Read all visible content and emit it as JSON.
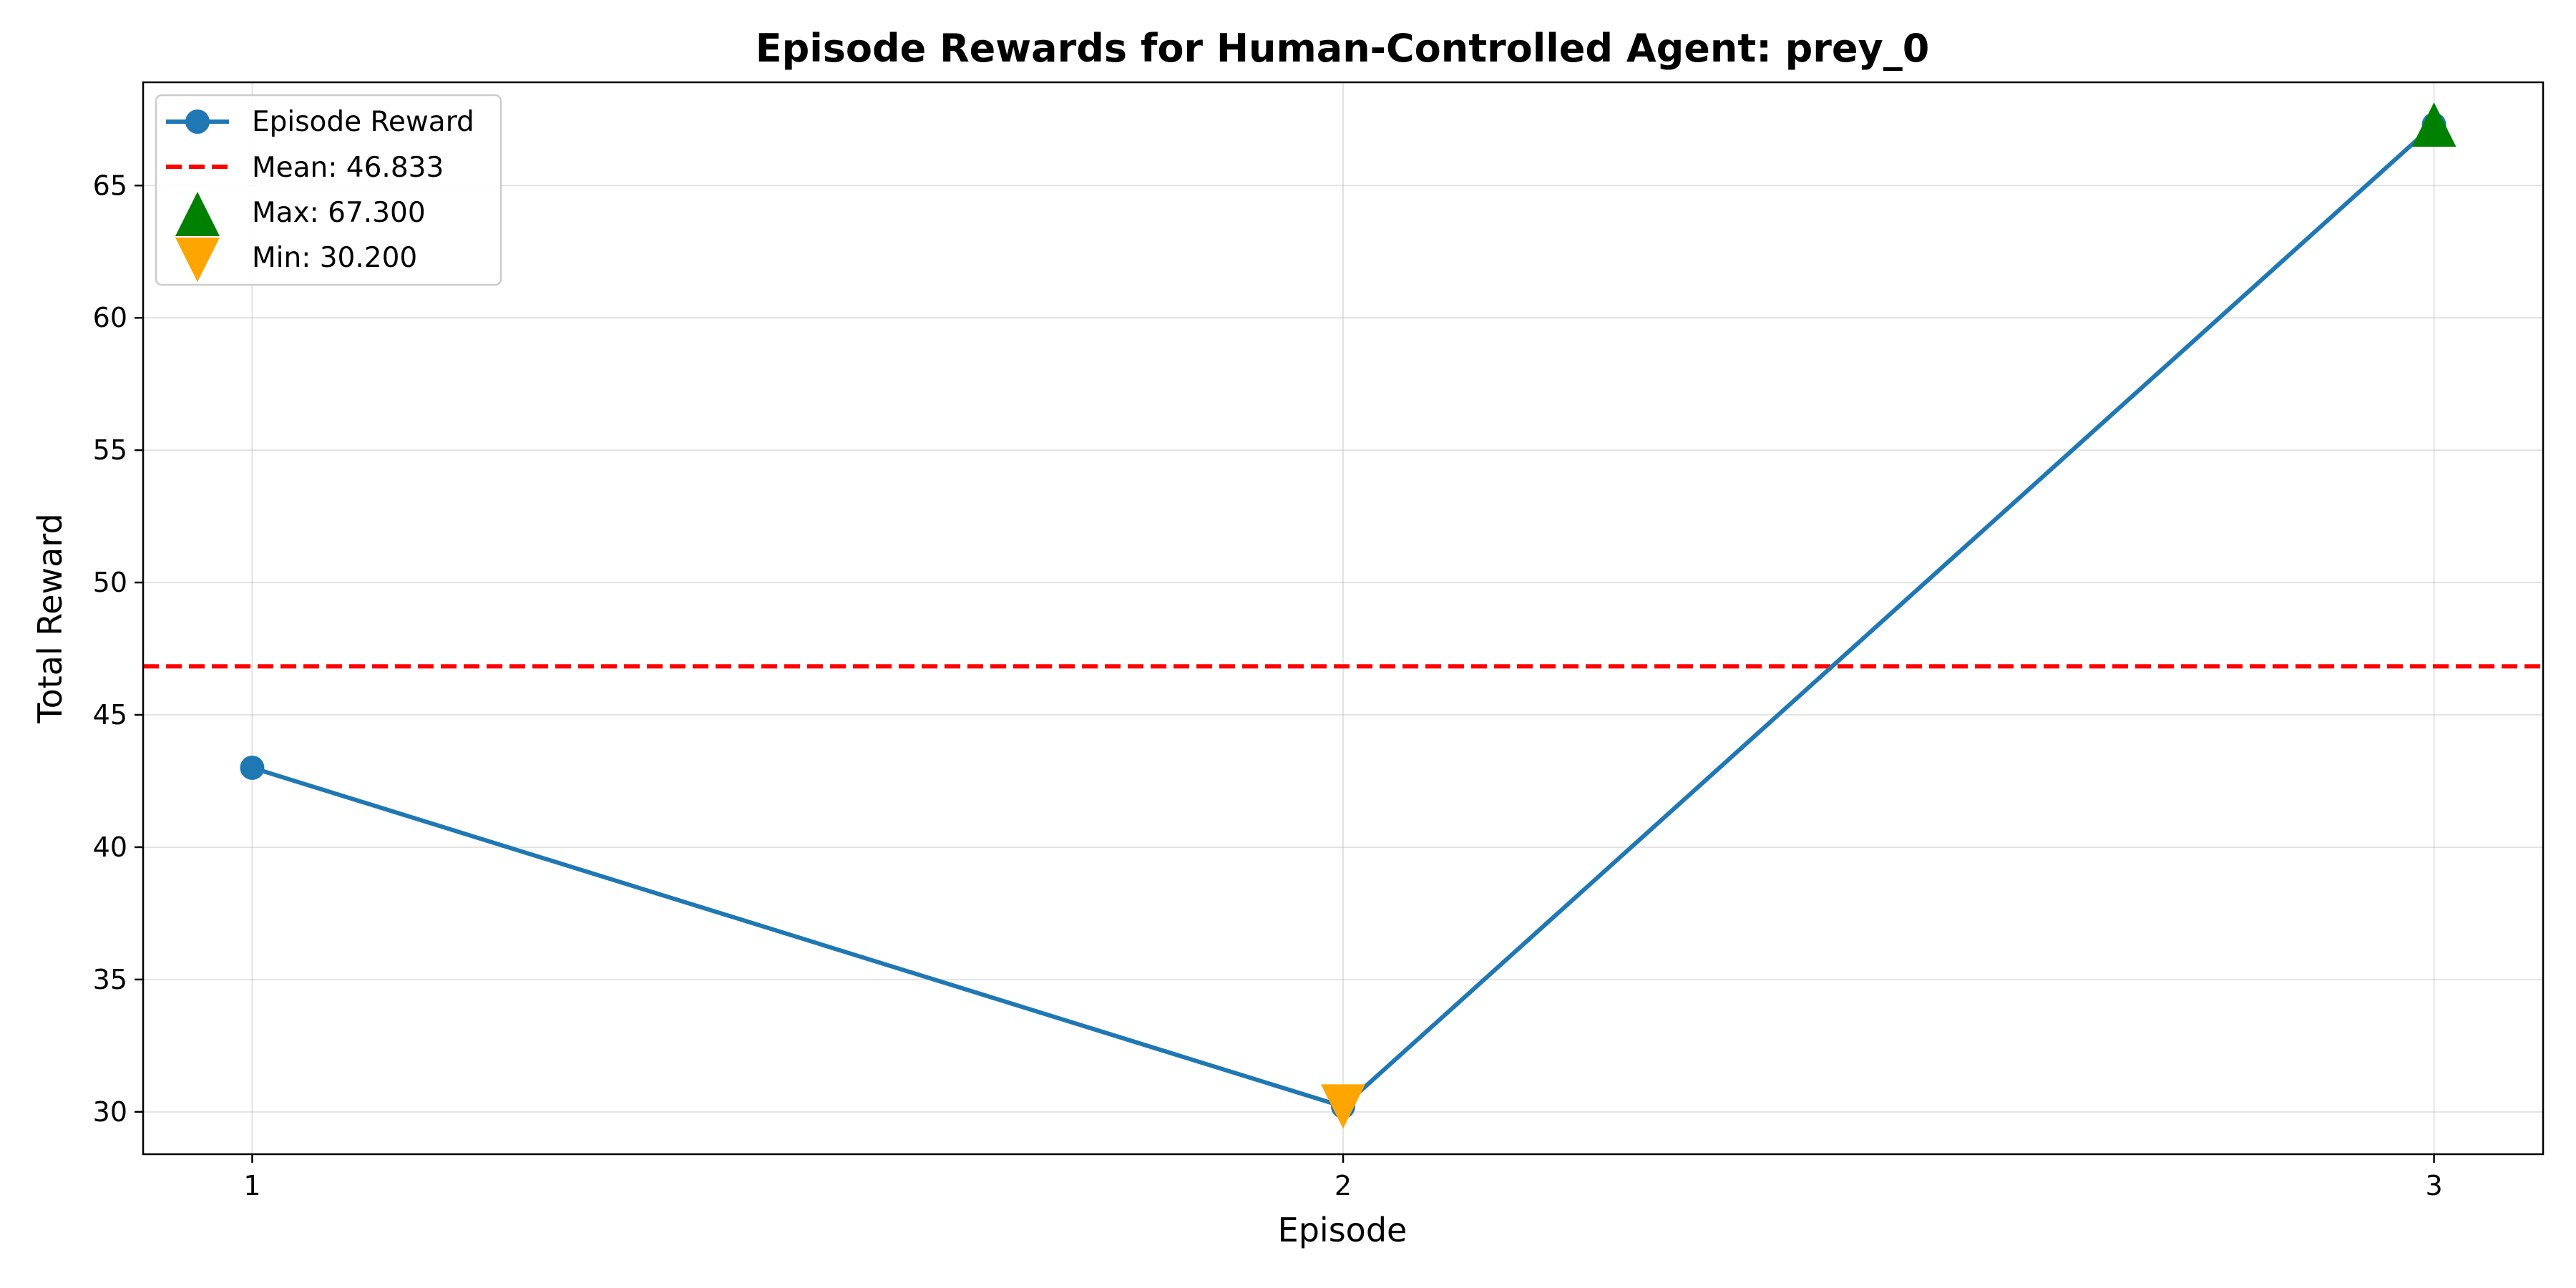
{
  "chart_data": {
    "type": "line",
    "title": "Episode Rewards for Human-Controlled Agent: prey_0",
    "xlabel": "Episode",
    "ylabel": "Total Reward",
    "x": [
      1,
      2,
      3
    ],
    "xlim": [
      0.9,
      3.1
    ],
    "ylim": [
      28.4,
      68.9
    ],
    "xticks": [
      1,
      2,
      3
    ],
    "yticks": [
      30,
      35,
      40,
      45,
      50,
      55,
      60,
      65
    ],
    "grid": true,
    "legend_position": "upper-left",
    "series": [
      {
        "name": "Episode Reward",
        "values": [
          43.0,
          30.2,
          67.3
        ],
        "color": "#1f77b4",
        "marker": "circle"
      }
    ],
    "mean": {
      "label": "Mean: 46.833",
      "value": 46.833,
      "color": "#ff0000",
      "style": "dashed"
    },
    "max": {
      "label": "Max: 67.300",
      "x": 3,
      "value": 67.3,
      "color": "#008000",
      "marker": "triangle-up"
    },
    "min": {
      "label": "Min: 30.200",
      "x": 2,
      "value": 30.2,
      "color": "#ffa500",
      "marker": "triangle-down"
    }
  }
}
